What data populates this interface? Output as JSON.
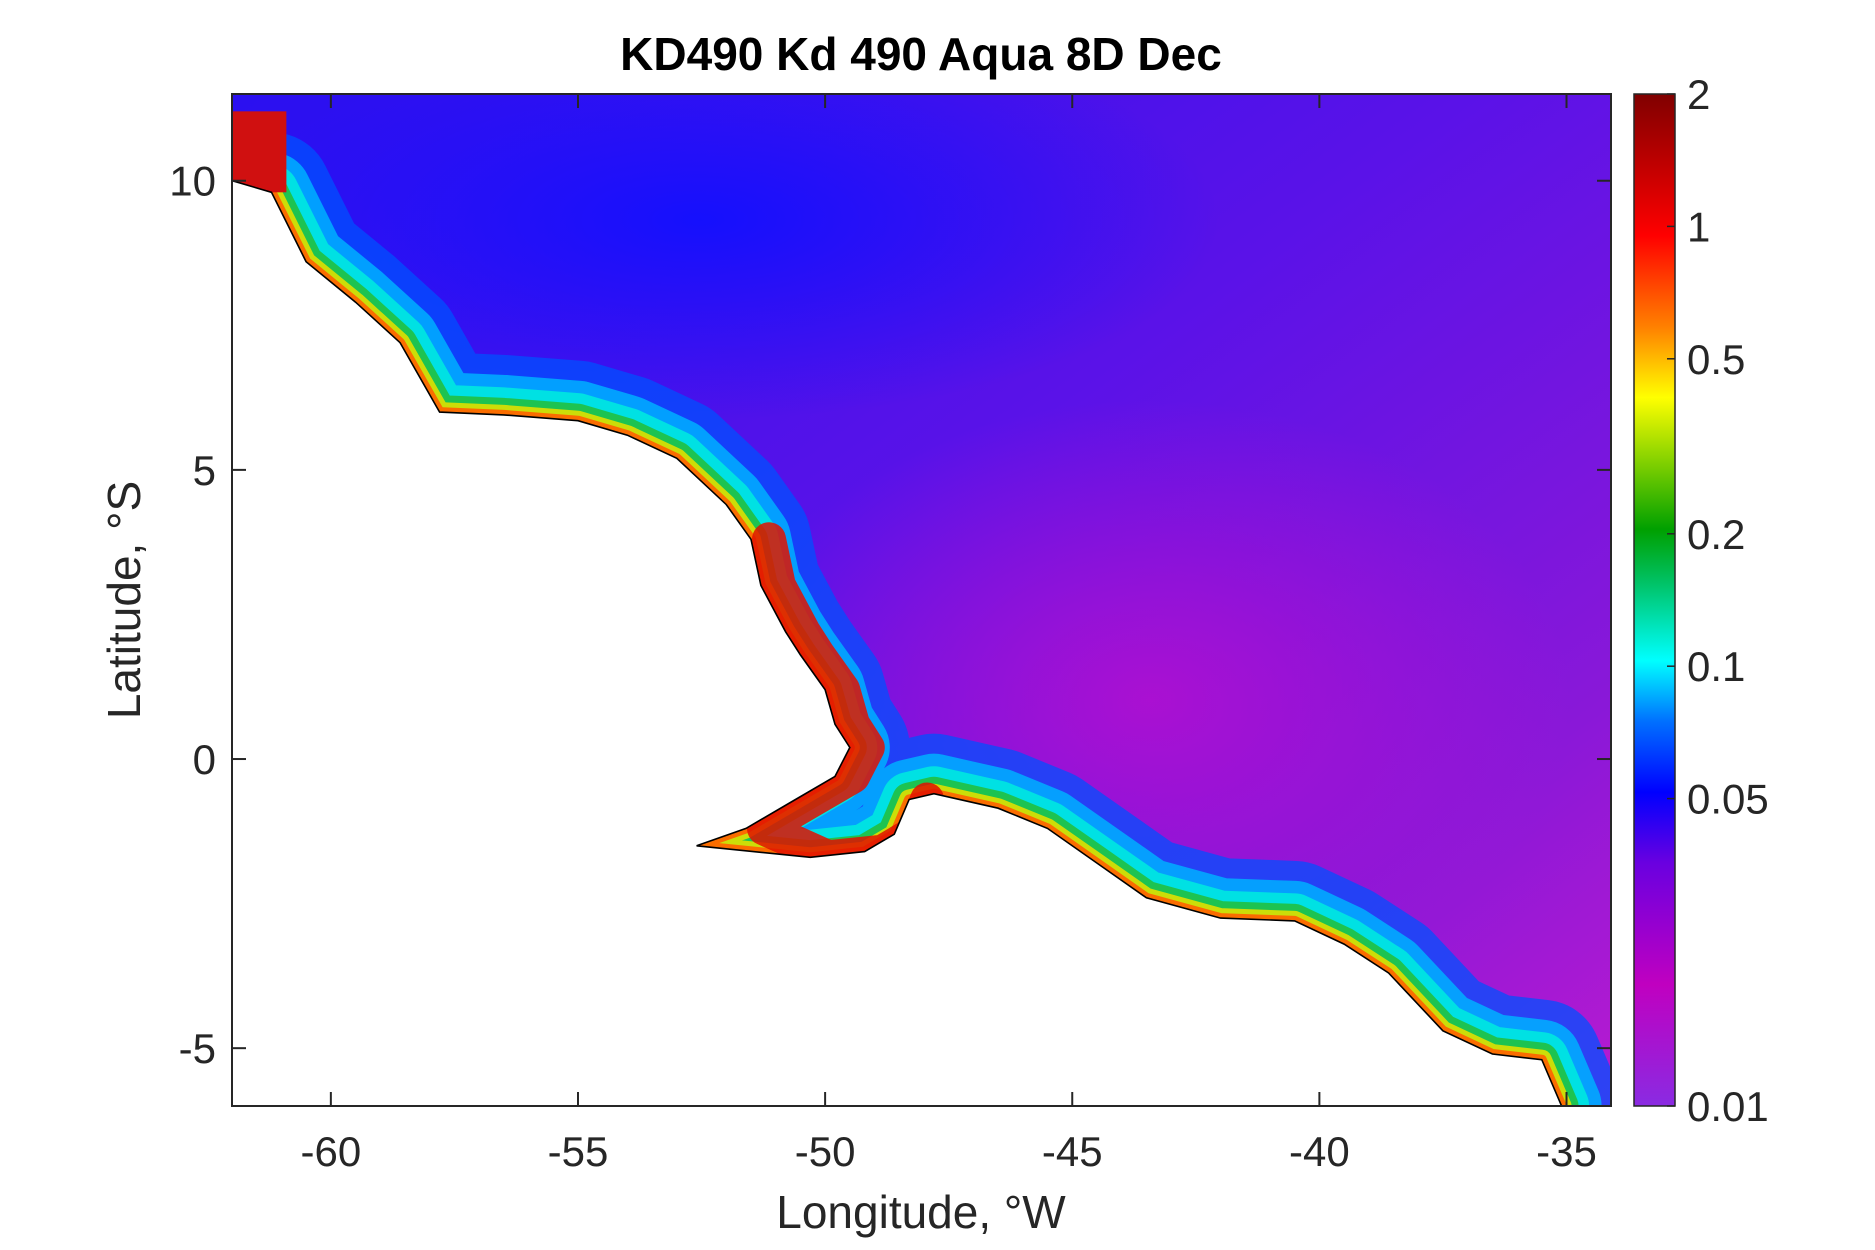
{
  "chart_data": {
    "type": "heatmap",
    "title": "KD490 Kd 490 Aqua 8D Dec",
    "xlabel": "Longitude, °W",
    "ylabel": "Latitude, °S",
    "xlim": [
      -62,
      -34.1
    ],
    "ylim": [
      -6,
      11.5
    ],
    "xticks": [
      -60,
      -55,
      -50,
      -45,
      -40,
      -35
    ],
    "yticks": [
      -5,
      0,
      5,
      10
    ],
    "xtick_labels": [
      "-60",
      "-55",
      "-50",
      "-45",
      "-40",
      "-35"
    ],
    "ytick_labels": [
      "-5",
      "0",
      "5",
      "10"
    ],
    "colorbar": {
      "scale": "log",
      "range": [
        0.01,
        2
      ],
      "ticks": [
        0.01,
        0.05,
        0.1,
        0.2,
        0.5,
        1,
        2
      ],
      "tick_labels": [
        "0.01",
        "0.05",
        "0.1",
        "0.2",
        "0.5",
        "1",
        "2"
      ],
      "colormap": [
        "#8a2be2",
        "#c000c0",
        "#4b00e0",
        "#0000ff",
        "#00a0ff",
        "#00ffff",
        "#00c000",
        "#ffff00",
        "#ff8000",
        "#ff0000",
        "#800000"
      ]
    },
    "coastline": [
      [
        -62,
        10
      ],
      [
        -61.2,
        9.8
      ],
      [
        -60.5,
        8.6
      ],
      [
        -59.5,
        7.9
      ],
      [
        -58.6,
        7.2
      ],
      [
        -57.8,
        6.0
      ],
      [
        -56.5,
        5.95
      ],
      [
        -55,
        5.85
      ],
      [
        -54,
        5.6
      ],
      [
        -53,
        5.2
      ],
      [
        -52,
        4.4
      ],
      [
        -51.5,
        3.8
      ],
      [
        -51.3,
        3.0
      ],
      [
        -50.8,
        2.2
      ],
      [
        -50.5,
        1.8
      ],
      [
        -50,
        1.2
      ],
      [
        -49.8,
        0.6
      ],
      [
        -49.5,
        0.2
      ],
      [
        -49.8,
        -0.3
      ],
      [
        -50.6,
        -0.7
      ],
      [
        -51.6,
        -1.2
      ],
      [
        -52.6,
        -1.5
      ],
      [
        -50.3,
        -1.7
      ],
      [
        -49.2,
        -1.6
      ],
      [
        -48.6,
        -1.3
      ],
      [
        -48.3,
        -0.7
      ],
      [
        -47.8,
        -0.6
      ],
      [
        -46.5,
        -0.85
      ],
      [
        -45.5,
        -1.2
      ],
      [
        -44.5,
        -1.8
      ],
      [
        -43.5,
        -2.4
      ],
      [
        -42,
        -2.75
      ],
      [
        -40.5,
        -2.8
      ],
      [
        -39.5,
        -3.2
      ],
      [
        -38.6,
        -3.7
      ],
      [
        -37.5,
        -4.7
      ],
      [
        -36.5,
        -5.1
      ],
      [
        -35.5,
        -5.2
      ],
      [
        -35.1,
        -6
      ]
    ]
  }
}
